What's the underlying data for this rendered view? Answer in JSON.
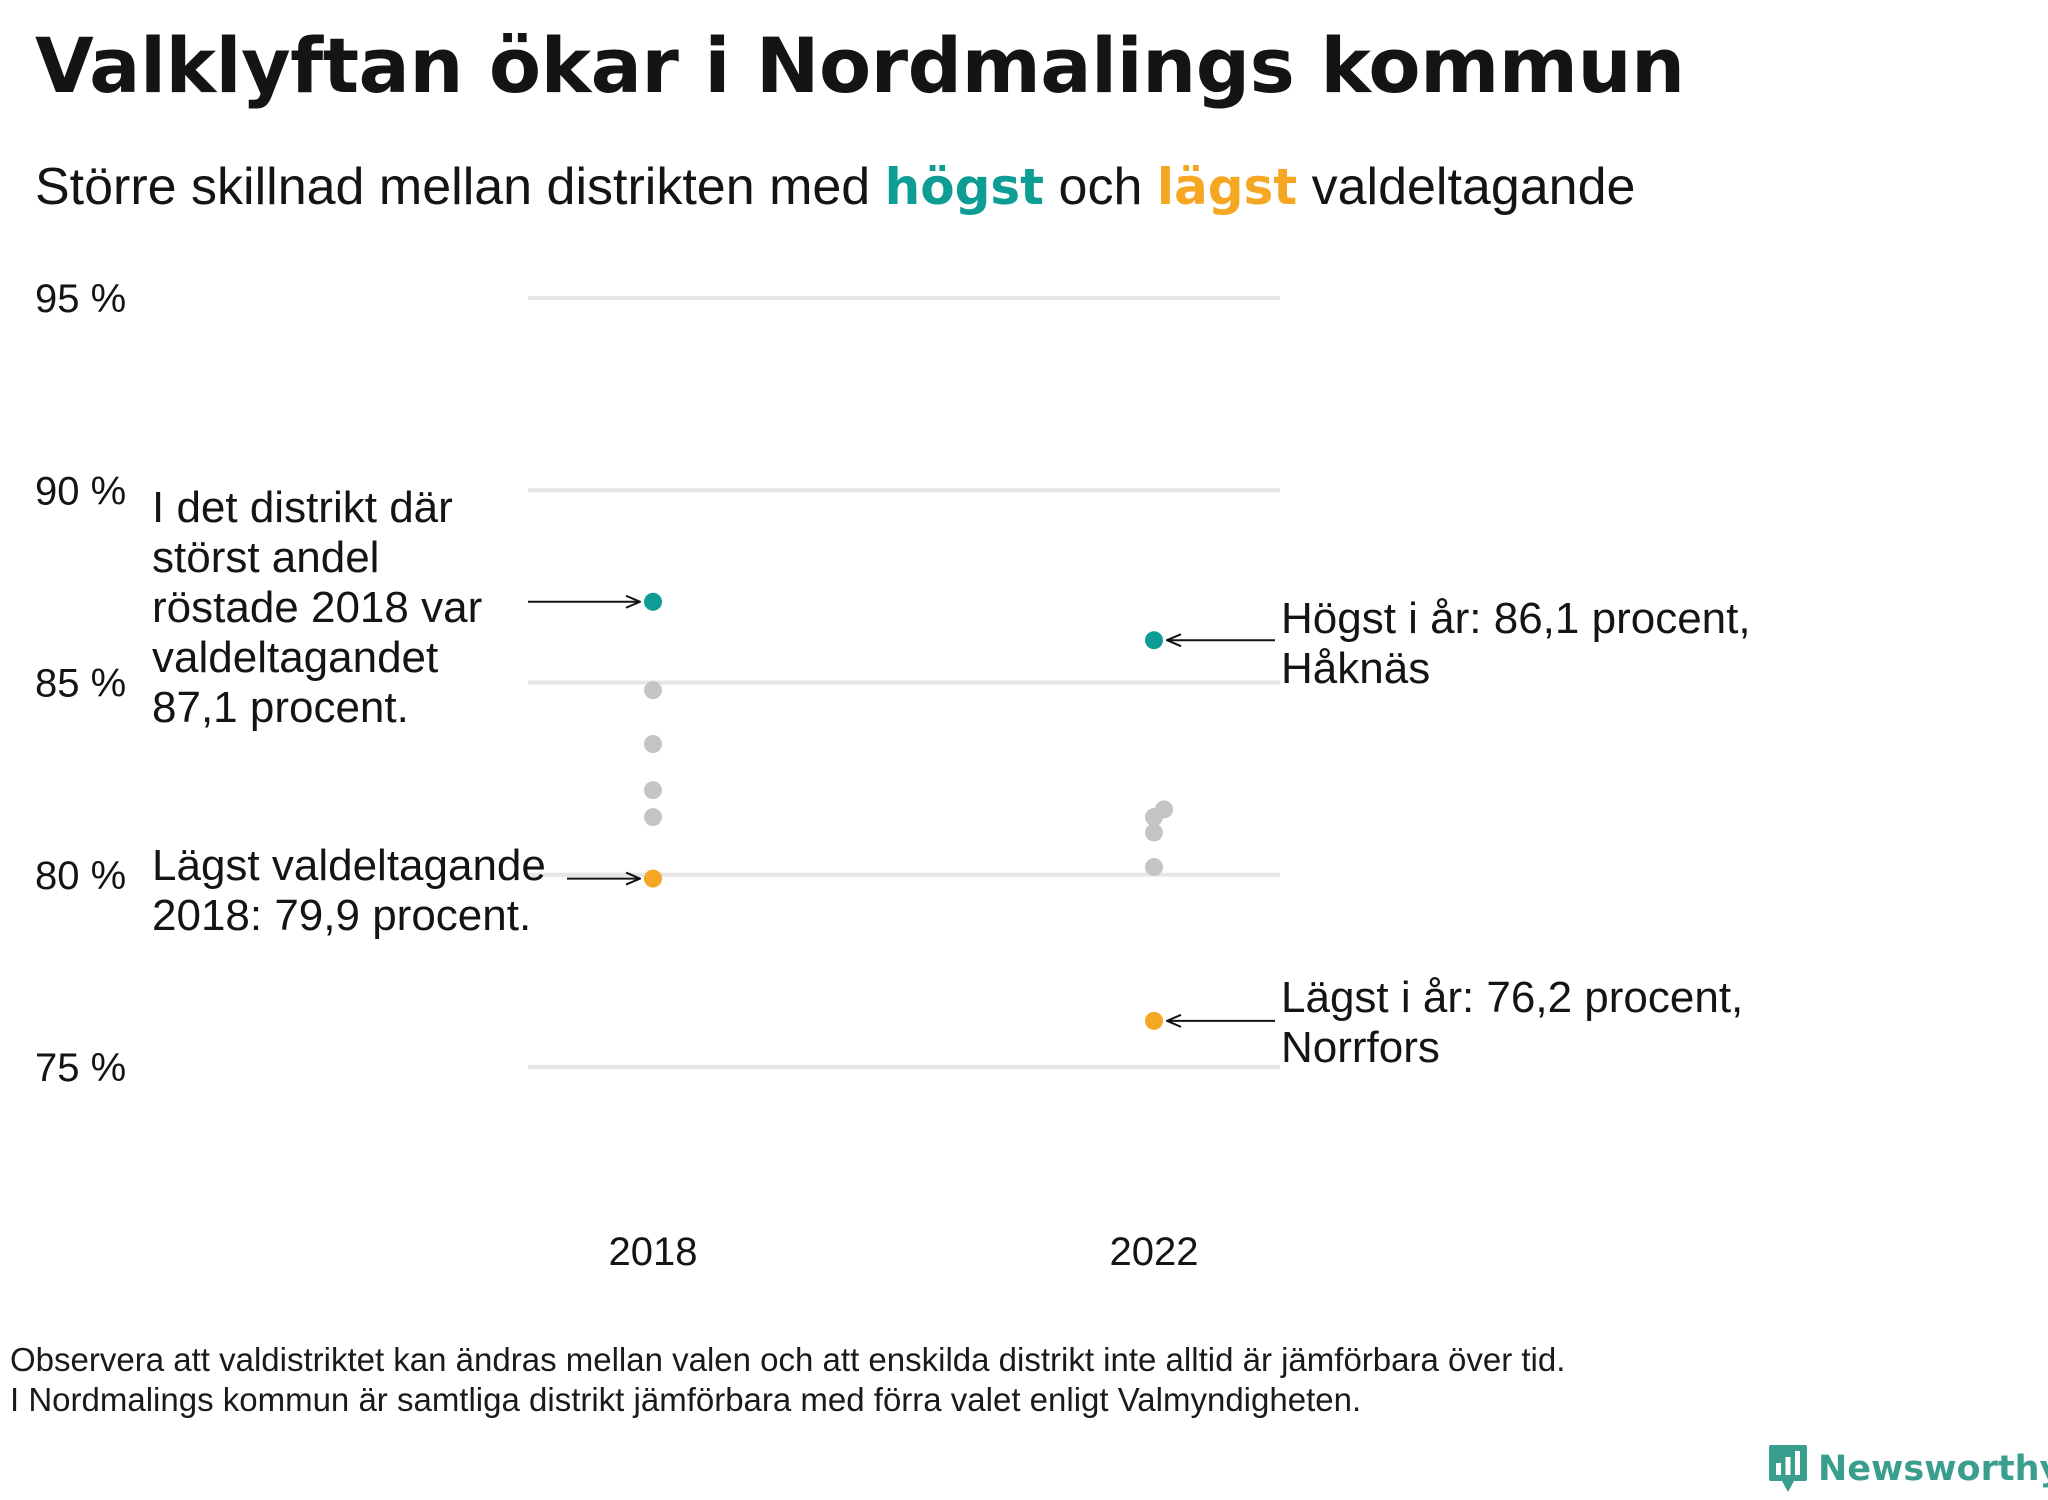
{
  "title": "Valklyftan ökar i Nordmalings kommun",
  "subtitle": {
    "part1": "Större  skillnad  mellan  distrikten  med ",
    "highlight_high": "högst",
    "part2": " och ",
    "highlight_low": "lägst",
    "part3": " valdeltagande"
  },
  "colors": {
    "high": "#0e9d95",
    "low": "#f5a623",
    "other": "#c4c4c4",
    "grid": "#e6e6e6",
    "text": "#141414",
    "brand": "#3a9e8f"
  },
  "chart_data": {
    "type": "scatter",
    "xlabel": "",
    "ylabel": "",
    "ylim": [
      75,
      95
    ],
    "yticks": [
      95,
      90,
      85,
      80,
      75
    ],
    "ytick_suffix": " %",
    "categories": [
      "2018",
      "2022"
    ],
    "grid": true,
    "series": [
      {
        "category": "2018",
        "highest": 87.1,
        "lowest": 79.9,
        "others": [
          84.8,
          83.4,
          82.2,
          81.5
        ]
      },
      {
        "category": "2022",
        "highest": 86.1,
        "lowest": 76.2,
        "others": [
          81.7,
          81.5,
          81.1,
          80.2
        ]
      }
    ],
    "annotations": [
      {
        "id": "high-2018",
        "lines": [
          "I det distrikt där",
          "störst andel",
          "röstade 2018 var",
          "valdeltagandet",
          "87,1 procent."
        ]
      },
      {
        "id": "low-2018",
        "lines": [
          "Lägst valdeltagande",
          "2018: 79,9 procent."
        ]
      },
      {
        "id": "high-2022",
        "lines": [
          "Högst i år: 86,1 procent,",
          "Håknäs"
        ]
      },
      {
        "id": "low-2022",
        "lines": [
          "Lägst i år: 76,2 procent,",
          "Norrfors"
        ]
      }
    ]
  },
  "footnote": {
    "line1": "Observera att valdistriktet kan ändras mellan valen och att enskilda distrikt inte alltid är jämförbara över tid.",
    "line2": "I Nordmalings kommun är samtliga distrikt jämförbara med förra valet enligt Valmyndigheten."
  },
  "brand": {
    "name": "Newsworthy",
    "icon": "bar-chart-speech-bubble-icon"
  }
}
